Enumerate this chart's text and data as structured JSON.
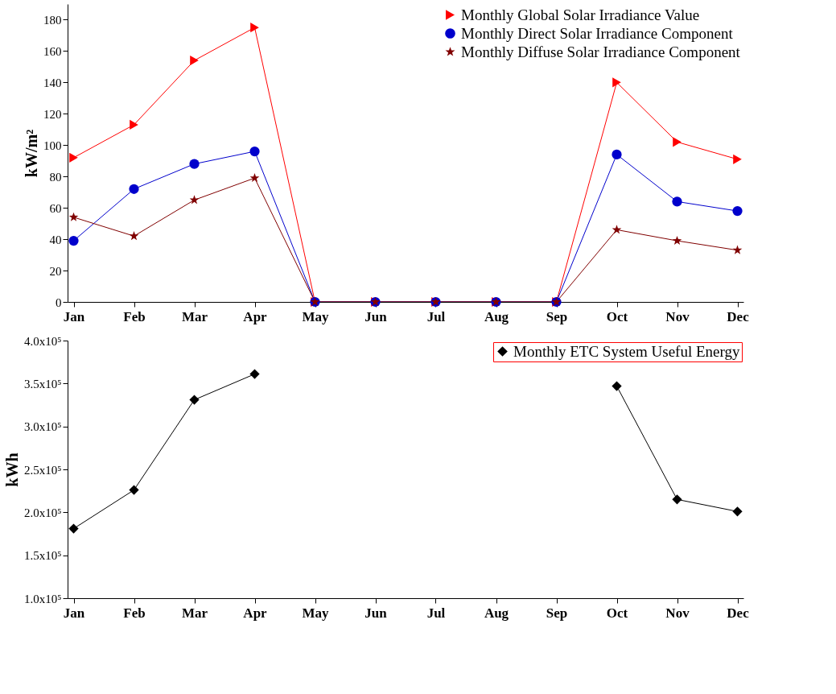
{
  "chart_data": [
    {
      "type": "line",
      "ylabel": "kW/m²",
      "categories": [
        "Jan",
        "Feb",
        "Mar",
        "Apr",
        "May",
        "Jun",
        "Jul",
        "Aug",
        "Sep",
        "Oct",
        "Nov",
        "Dec"
      ],
      "ylim": [
        0,
        190
      ],
      "yticks": [
        0,
        20,
        40,
        60,
        80,
        100,
        120,
        140,
        160,
        180
      ],
      "grid": false,
      "legend": "top right",
      "series": [
        {
          "name": "Monthly Global Solar Irradiance Value",
          "color": "#ff0000",
          "marker": "triangle",
          "values": [
            92,
            113,
            154,
            175,
            0,
            0,
            0,
            0,
            0,
            140,
            102,
            91
          ]
        },
        {
          "name": "Monthly Direct Solar Irradiance Component",
          "color": "#0000cc",
          "marker": "circle",
          "values": [
            39,
            72,
            88,
            96,
            0,
            0,
            0,
            0,
            0,
            94,
            64,
            58
          ]
        },
        {
          "name": "Monthly Diffuse Solar Irradiance Component",
          "color": "#800000",
          "marker": "star",
          "values": [
            54,
            42,
            65,
            79,
            0,
            0,
            0,
            0,
            0,
            46,
            39,
            33
          ]
        }
      ]
    },
    {
      "type": "line",
      "ylabel": "kWh",
      "categories": [
        "Jan",
        "Feb",
        "Mar",
        "Apr",
        "May",
        "Jun",
        "Jul",
        "Aug",
        "Sep",
        "Oct",
        "Nov",
        "Dec"
      ],
      "ylim": [
        100000,
        400000
      ],
      "yticks": [
        {
          "value": 100000,
          "label": "1.0x10⁵"
        },
        {
          "value": 150000,
          "label": "1.5x10⁵"
        },
        {
          "value": 200000,
          "label": "2.0x10⁵"
        },
        {
          "value": 250000,
          "label": "2.5x10⁵"
        },
        {
          "value": 300000,
          "label": "3.0x10⁵"
        },
        {
          "value": 350000,
          "label": "3.5x10⁵"
        },
        {
          "value": 400000,
          "label": "4.0x10⁵"
        }
      ],
      "grid": false,
      "legend": "top right",
      "series": [
        {
          "name": "Monthly ETC System Useful Energy",
          "color": "#000000",
          "marker": "diamond",
          "values": [
            181000,
            226000,
            331000,
            361000,
            null,
            null,
            null,
            null,
            null,
            347000,
            215000,
            201000
          ]
        }
      ]
    }
  ]
}
